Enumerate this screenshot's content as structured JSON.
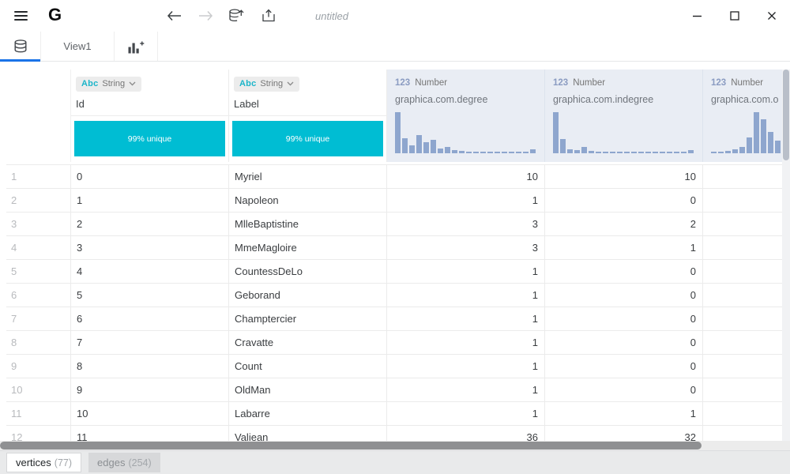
{
  "titlebar": {
    "logo_letter": "G",
    "title": "untitled"
  },
  "view_tabs": {
    "view1": "View1"
  },
  "table": {
    "columns": [
      {
        "kind": "rownum",
        "name": ""
      },
      {
        "kind": "string",
        "type_abbr": "Abc",
        "type_name": "String",
        "name": "Id",
        "badge": "99% unique"
      },
      {
        "kind": "string",
        "type_abbr": "Abc",
        "type_name": "String",
        "name": "Label",
        "badge": "99% unique"
      },
      {
        "kind": "number",
        "type_abbr": "123",
        "type_name": "Number",
        "name": "graphica.com.degree",
        "hist": 0
      },
      {
        "kind": "number",
        "type_abbr": "123",
        "type_name": "Number",
        "name": "graphica.com.indegree",
        "hist": 1
      },
      {
        "kind": "number",
        "type_abbr": "123",
        "type_name": "Number",
        "name": "graphica.com.o",
        "hist": 2
      }
    ],
    "rows": [
      [
        "1",
        "0",
        "Myriel",
        "10",
        "10",
        ""
      ],
      [
        "2",
        "1",
        "Napoleon",
        "1",
        "0",
        ""
      ],
      [
        "3",
        "2",
        "MlleBaptistine",
        "3",
        "2",
        ""
      ],
      [
        "4",
        "3",
        "MmeMagloire",
        "3",
        "1",
        ""
      ],
      [
        "5",
        "4",
        "CountessDeLo",
        "1",
        "0",
        ""
      ],
      [
        "6",
        "5",
        "Geborand",
        "1",
        "0",
        ""
      ],
      [
        "7",
        "6",
        "Champtercier",
        "1",
        "0",
        ""
      ],
      [
        "8",
        "7",
        "Cravatte",
        "1",
        "0",
        ""
      ],
      [
        "9",
        "8",
        "Count",
        "1",
        "0",
        ""
      ],
      [
        "10",
        "9",
        "OldMan",
        "1",
        "0",
        ""
      ],
      [
        "11",
        "10",
        "Labarre",
        "1",
        "1",
        ""
      ],
      [
        "12",
        "11",
        "Valjean",
        "36",
        "32",
        ""
      ]
    ]
  },
  "chart_data": [
    {
      "type": "bar",
      "title": "graphica.com.degree column histogram",
      "values": [
        1.0,
        0.36,
        0.2,
        0.44,
        0.26,
        0.32,
        0.12,
        0.16,
        0.08,
        0.05,
        0.04,
        0.03,
        0.02,
        0.02,
        0.02,
        0.02,
        0.02,
        0.02,
        0.02,
        0.1
      ]
    },
    {
      "type": "bar",
      "title": "graphica.com.indegree column histogram",
      "values": [
        1.0,
        0.34,
        0.1,
        0.07,
        0.16,
        0.05,
        0.04,
        0.03,
        0.02,
        0.02,
        0.02,
        0.02,
        0.02,
        0.02,
        0.02,
        0.02,
        0.02,
        0.02,
        0.02,
        0.08
      ]
    },
    {
      "type": "bar",
      "title": "graphica.com.o column histogram (partially visible)",
      "values": [
        0.03,
        0.04,
        0.06,
        0.1,
        0.15,
        0.38,
        1.0,
        0.82,
        0.52,
        0.3
      ]
    }
  ],
  "footer": {
    "tabs": [
      {
        "label": "vertices",
        "count": "(77)",
        "active": true
      },
      {
        "label": "edges",
        "count": "(254)",
        "active": false
      }
    ]
  },
  "colors": {
    "accent_teal": "#00bdd3",
    "histogram_blue": "#8ea6ce",
    "active_tab_blue": "#1a73e8",
    "number_header_bg": "#e9edf4"
  }
}
